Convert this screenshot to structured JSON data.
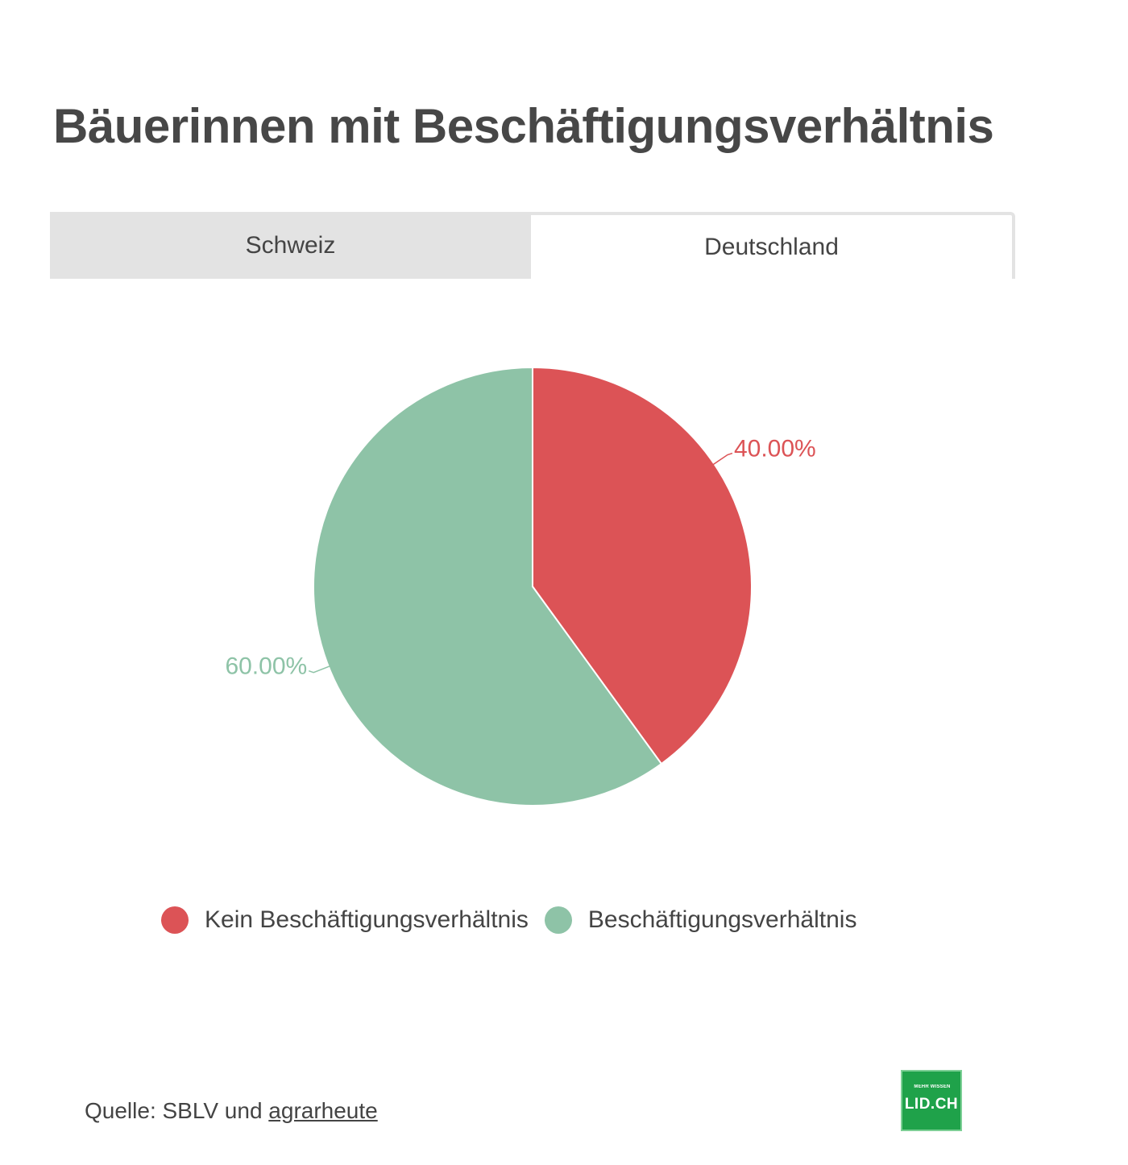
{
  "title": "Bäuerinnen mit Beschäftigungsverhältnis",
  "tabs": [
    {
      "label": "Schweiz",
      "active": false
    },
    {
      "label": "Deutschland",
      "active": true
    }
  ],
  "colors": {
    "kein": "#dc5356",
    "besch": "#8ec3a7"
  },
  "chart_data": {
    "type": "pie",
    "title": "Bäuerinnen mit Beschäftigungsverhältnis",
    "series": [
      {
        "name": "Kein Beschäftigungsverhältnis",
        "value": 40.0,
        "label": "40.00%",
        "color": "#dc5356"
      },
      {
        "name": "Beschäftigungsverhältnis",
        "value": 60.0,
        "label": "60.00%",
        "color": "#8ec3a7"
      }
    ],
    "legend_position": "bottom"
  },
  "source": {
    "prefix": "Quelle: SBLV und ",
    "link": "agrarheute"
  },
  "logo": {
    "small_text": "MEHR WISSEN",
    "main_text": "LID.CH"
  }
}
